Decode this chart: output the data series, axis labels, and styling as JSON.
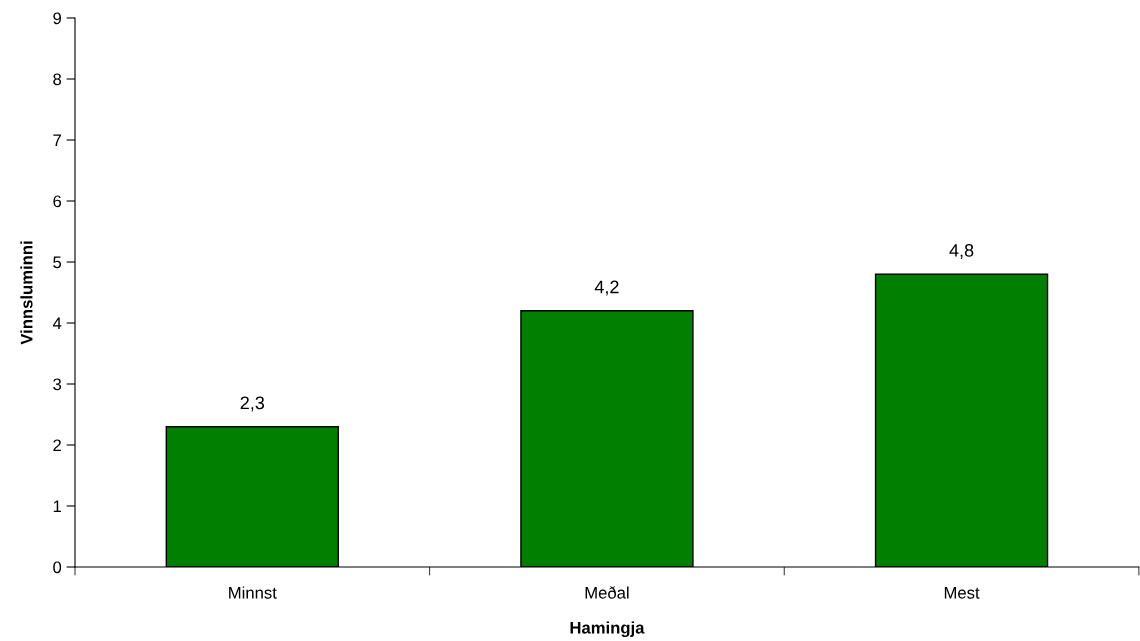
{
  "chart_data": {
    "type": "bar",
    "xlabel": "Hamingja",
    "ylabel": "Vinnsluminni",
    "categories": [
      "Minnst",
      "Meðal",
      "Mest"
    ],
    "values": [
      2.3,
      4.2,
      4.8
    ],
    "value_labels": [
      "2,3",
      "4,2",
      "4,8"
    ],
    "color": "#007f00",
    "ylim": [
      0,
      9
    ],
    "yticks": [
      0,
      1,
      2,
      3,
      4,
      5,
      6,
      7,
      8,
      9
    ],
    "grid": false,
    "legend": false
  }
}
